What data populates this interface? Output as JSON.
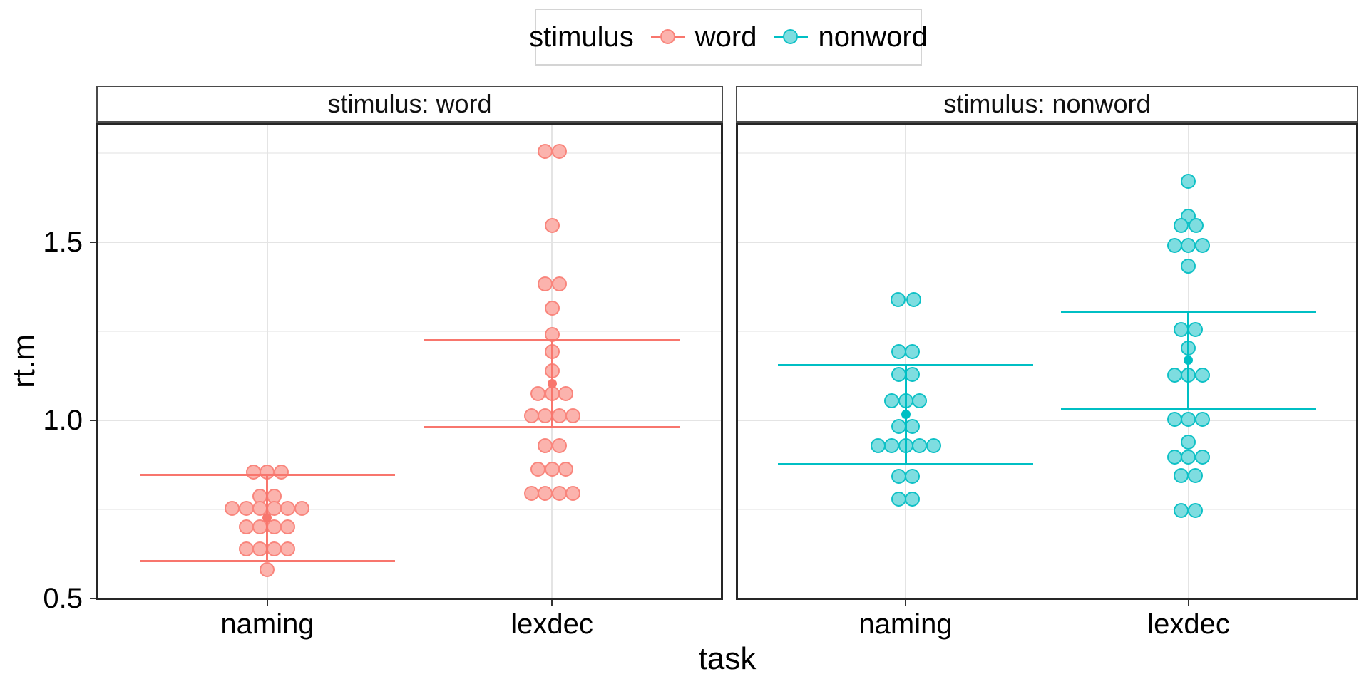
{
  "legend": {
    "title": "stimulus",
    "items": [
      {
        "label": "word",
        "color": "#F8766D",
        "stroke": "#F9857C",
        "fill": "#FBB3AD"
      },
      {
        "label": "nonword",
        "color": "#00BFC4",
        "stroke": "#0FC1C6",
        "fill": "#7EDDE0"
      }
    ]
  },
  "axes": {
    "x_title": "task",
    "y_title": "rt.m",
    "x_categories": [
      "naming",
      "lexdec"
    ],
    "y_ticks": [
      {
        "label": "1.5",
        "value": 1.5
      },
      {
        "label": "1.0",
        "value": 1.0
      },
      {
        "label": "0.5",
        "value": 0.5
      }
    ]
  },
  "chart_data": {
    "type": "scatter",
    "variant": "faceted beeswarm dot plot with mean and sd pointrange/errorbar overlay",
    "title": "",
    "xlabel": "task",
    "ylabel": "rt.m",
    "legend_position": "top",
    "grid": true,
    "x_categories": [
      "naming",
      "lexdec"
    ],
    "ylim": [
      0.496,
      1.836
    ],
    "y_major_gridlines": [
      0.5,
      1.0,
      1.5
    ],
    "y_minor_gridlines": [
      0.75,
      1.25,
      1.75
    ],
    "facets": [
      {
        "strip_label": "stimulus: word",
        "stimulus": "word",
        "groups": [
          {
            "task": "naming",
            "summary": {
              "mean": 0.727,
              "lower": 0.606,
              "upper": 0.848
            },
            "rows": [
              {
                "v": 0.855,
                "dx": [
                  -19.5,
                  0,
                  19.5
                ]
              },
              {
                "v": 0.788,
                "dx": [
                  -9.75,
                  9.75
                ]
              },
              {
                "v": 0.754,
                "dx": [
                  -48.75,
                  -29.25,
                  -9.75,
                  9.75,
                  29.25,
                  48.75
                ]
              },
              {
                "v": 0.702,
                "dx": [
                  -29.25,
                  -9.75,
                  9.75,
                  29.25
                ]
              },
              {
                "v": 0.64,
                "dx": [
                  -29.25,
                  -9.75,
                  9.75,
                  29.25
                ]
              },
              {
                "v": 0.582,
                "dx": [
                  0
                ]
              }
            ]
          },
          {
            "task": "lexdec",
            "summary": {
              "mean": 1.104,
              "lower": 0.982,
              "upper": 1.226
            },
            "rows": [
              {
                "v": 1.755,
                "dx": [
                  -9.75,
                  9.75
                ]
              },
              {
                "v": 1.548,
                "dx": [
                  0
                ]
              },
              {
                "v": 1.384,
                "dx": [
                  -9.75,
                  9.75
                ]
              },
              {
                "v": 1.316,
                "dx": [
                  0
                ]
              },
              {
                "v": 1.242,
                "dx": [
                  0
                ]
              },
              {
                "v": 1.194,
                "dx": [
                  0
                ]
              },
              {
                "v": 1.14,
                "dx": [
                  0
                ]
              },
              {
                "v": 1.076,
                "dx": [
                  -19.5,
                  0,
                  19.5
                ]
              },
              {
                "v": 1.014,
                "dx": [
                  -29.25,
                  -9.75,
                  9.75,
                  29.25
                ]
              },
              {
                "v": 0.93,
                "dx": [
                  -9.75,
                  9.75
                ]
              },
              {
                "v": 0.864,
                "dx": [
                  -19.5,
                  0,
                  19.5
                ]
              },
              {
                "v": 0.796,
                "dx": [
                  -29.25,
                  -9.75,
                  9.75,
                  29.25
                ]
              }
            ]
          }
        ]
      },
      {
        "strip_label": "stimulus: nonword",
        "stimulus": "nonword",
        "groups": [
          {
            "task": "naming",
            "summary": {
              "mean": 1.017,
              "lower": 0.878,
              "upper": 1.156
            },
            "rows": [
              {
                "v": 1.34,
                "dx": [
                  -11,
                  11
                ]
              },
              {
                "v": 1.194,
                "dx": [
                  -9.75,
                  9.75
                ]
              },
              {
                "v": 1.13,
                "dx": [
                  -9.75,
                  9.75
                ]
              },
              {
                "v": 1.056,
                "dx": [
                  -19.5,
                  0,
                  19.5
                ]
              },
              {
                "v": 0.984,
                "dx": [
                  -9.75,
                  9.75
                ]
              },
              {
                "v": 0.93,
                "dx": [
                  -39,
                  -19.5,
                  0,
                  19.5,
                  39
                ]
              },
              {
                "v": 0.844,
                "dx": [
                  -9.75,
                  9.75
                ]
              },
              {
                "v": 0.78,
                "dx": [
                  -9.75,
                  9.75
                ]
              }
            ]
          },
          {
            "task": "lexdec",
            "summary": {
              "mean": 1.169,
              "lower": 1.032,
              "upper": 1.306
            },
            "rows": [
              {
                "v": 1.672,
                "dx": [
                  0
                ]
              },
              {
                "v": 1.574,
                "dx": [
                  0
                ]
              },
              {
                "v": 1.548,
                "dx": [
                  -10,
                  10.5
                ]
              },
              {
                "v": 1.492,
                "dx": [
                  -19.5,
                  0,
                  19.5
                ]
              },
              {
                "v": 1.434,
                "dx": [
                  0
                ]
              },
              {
                "v": 1.256,
                "dx": [
                  -10,
                  10
                ]
              },
              {
                "v": 1.204,
                "dx": [
                  0
                ]
              },
              {
                "v": 1.128,
                "dx": [
                  -19.5,
                  0,
                  19.5
                ]
              },
              {
                "v": 1.004,
                "dx": [
                  -19.5,
                  0,
                  19.5
                ]
              },
              {
                "v": 0.94,
                "dx": [
                  0
                ]
              },
              {
                "v": 0.898,
                "dx": [
                  -19.5,
                  0,
                  19.5
                ]
              },
              {
                "v": 0.846,
                "dx": [
                  -10,
                  10
                ]
              },
              {
                "v": 0.748,
                "dx": [
                  -10,
                  10
                ]
              }
            ]
          }
        ]
      }
    ]
  }
}
